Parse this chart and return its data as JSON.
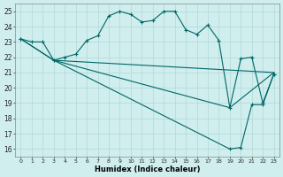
{
  "xlabel": "Humidex (Indice chaleur)",
  "bg_color": "#d0eeee",
  "grid_color": "#b0d8d8",
  "line_color": "#006666",
  "xlim": [
    -0.5,
    23.5
  ],
  "ylim": [
    15.5,
    25.5
  ],
  "yticks": [
    16,
    17,
    18,
    19,
    20,
    21,
    22,
    23,
    24,
    25
  ],
  "xticks": [
    0,
    1,
    2,
    3,
    4,
    5,
    6,
    7,
    8,
    9,
    10,
    11,
    12,
    13,
    14,
    15,
    16,
    17,
    18,
    19,
    20,
    21,
    22,
    23
  ],
  "curve1_x": [
    0,
    1,
    2,
    3,
    4,
    5,
    6,
    7,
    8,
    9,
    10,
    11,
    12,
    13,
    14,
    15,
    16,
    17,
    18,
    19,
    20,
    21,
    22,
    23
  ],
  "curve1_y": [
    23.2,
    23.0,
    23.0,
    21.8,
    22.0,
    22.2,
    23.1,
    23.4,
    24.7,
    25.0,
    24.8,
    24.3,
    24.4,
    25.0,
    25.0,
    23.8,
    23.5,
    24.1,
    23.1,
    18.7,
    21.9,
    22.0,
    19.0,
    20.9
  ],
  "curve2_x": [
    0,
    3,
    23
  ],
  "curve2_y": [
    23.2,
    21.8,
    21.0
  ],
  "curve3_x": [
    0,
    3,
    19,
    20,
    21,
    22,
    23
  ],
  "curve3_y": [
    23.2,
    21.8,
    16.0,
    16.1,
    18.9,
    18.9,
    20.9
  ],
  "curve4_x": [
    3,
    19,
    23
  ],
  "curve4_y": [
    21.8,
    18.7,
    21.0
  ]
}
